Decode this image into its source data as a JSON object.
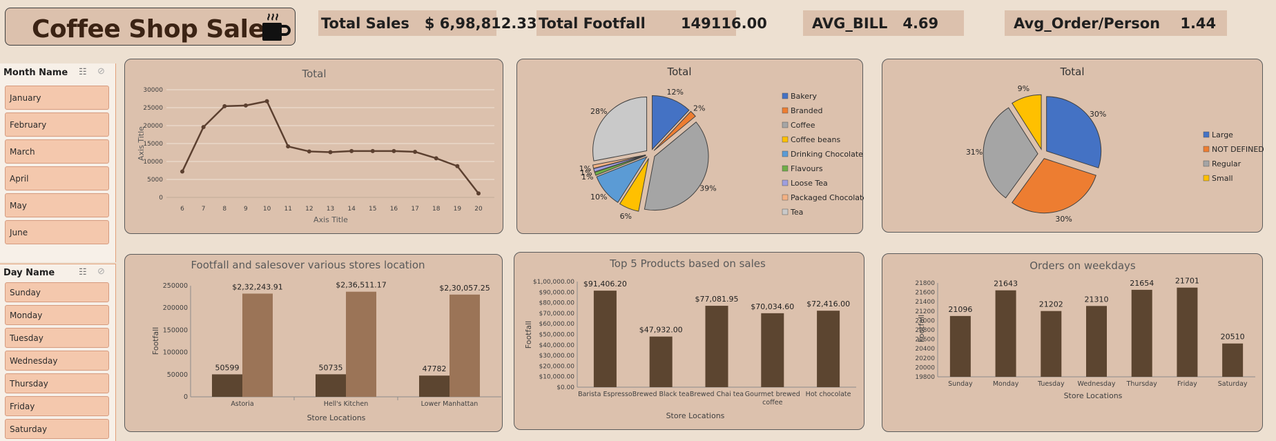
{
  "header": {
    "title": "Coffee Shop Sales"
  },
  "kpis": {
    "total_sales": "Total Sales   $ 6,98,812.33",
    "total_footfall": "Total Footfall       149116.00",
    "avg_bill": "AVG_BILL   4.69",
    "avg_order": "Avg_Order/Person    1.44"
  },
  "slicers": {
    "month": {
      "header": "Month Name",
      "items": [
        "January",
        "February",
        "March",
        "April",
        "May",
        "June"
      ]
    },
    "day": {
      "header": "Day Name",
      "items": [
        "Sunday",
        "Monday",
        "Tuesday",
        "Wednesday",
        "Thursday",
        "Friday",
        "Saturday"
      ]
    }
  },
  "chart_data": [
    {
      "type": "line",
      "title": "Total",
      "xlabel": "Axis Title",
      "ylabel": "Axis Title",
      "x": [
        "6",
        "7",
        "8",
        "9",
        "10",
        "11",
        "12",
        "13",
        "14",
        "15",
        "16",
        "17",
        "18",
        "19",
        "20"
      ],
      "values": [
        7200,
        19600,
        25400,
        25600,
        26800,
        14200,
        12800,
        12600,
        12900,
        12900,
        12900,
        12700,
        10900,
        8700,
        1100
      ],
      "yticks": [
        "0",
        "5000",
        "10000",
        "15000",
        "20000",
        "25000",
        "30000"
      ],
      "ylim": [
        0,
        30000
      ],
      "grid": true,
      "color": "#5c4030"
    },
    {
      "type": "pie",
      "title": "Total",
      "slices": [
        {
          "name": "Bakery",
          "value": 12,
          "label": "12%",
          "color": "#4472c4"
        },
        {
          "name": "Branded",
          "value": 2,
          "label": "2%",
          "color": "#ed7d31"
        },
        {
          "name": "Coffee",
          "value": 39,
          "label": "39%",
          "color": "#a5a5a5"
        },
        {
          "name": "Coffee beans",
          "value": 6,
          "label": "6%",
          "color": "#ffc000"
        },
        {
          "name": "Drinking Chocolate",
          "value": 10,
          "label": "10%",
          "color": "#5b9bd5"
        },
        {
          "name": "Flavours",
          "value": 1,
          "label": "1%",
          "color": "#70ad47"
        },
        {
          "name": "Loose Tea",
          "value": 1,
          "label": "1%",
          "color": "#9e9ede"
        },
        {
          "name": "Packaged Chocolate",
          "value": 1,
          "label": "1%",
          "color": "#f4b183"
        },
        {
          "name": "Tea",
          "value": 28,
          "label": "28%",
          "color": "#c9c9c9"
        }
      ],
      "legend": "right"
    },
    {
      "type": "pie",
      "title": "Total",
      "slices": [
        {
          "name": "Large",
          "value": 30,
          "label": "30%",
          "color": "#4472c4"
        },
        {
          "name": "NOT DEFINED",
          "value": 30,
          "label": "30%",
          "color": "#ed7d31"
        },
        {
          "name": "Regular",
          "value": 31,
          "label": "31%",
          "color": "#a5a5a5"
        },
        {
          "name": "Small",
          "value": 9,
          "label": "9%",
          "color": "#ffc000"
        }
      ],
      "legend": "right"
    },
    {
      "type": "bar",
      "title": "Footfall and salesover various stores location",
      "xlabel": "Store Locations",
      "ylabel": "Footfall",
      "categories": [
        "Astoria",
        "Hell's Kitchen",
        "Lower Manhattan"
      ],
      "series": [
        {
          "values": [
            50599,
            50735,
            47782
          ],
          "labels": [
            "50599",
            "50735",
            "47782"
          ],
          "color": "#5c4530"
        },
        {
          "values": [
            232243.91,
            236511.17,
            230057.25
          ],
          "labels": [
            "$2,32,243.91",
            "$2,36,511.17",
            "$2,30,057.25"
          ],
          "color": "#9b7457"
        }
      ],
      "yticks": [
        "0",
        "50000",
        "100000",
        "150000",
        "200000",
        "250000"
      ],
      "ylim": [
        0,
        250000
      ]
    },
    {
      "type": "bar",
      "title": "Top 5 Products based on sales",
      "xlabel": "Store Locations",
      "ylabel": "Footfall",
      "categories": [
        "Barista Espresso",
        "Brewed Black tea",
        "Brewed Chai tea",
        "Gourmet brewed coffee",
        "Hot chocolate"
      ],
      "values": [
        91406.2,
        47932.0,
        77081.95,
        70034.6,
        72416.0
      ],
      "labels": [
        "$91,406.20",
        "$47,932.00",
        "$77,081.95",
        "$70,034.60",
        "$72,416.00"
      ],
      "yticks": [
        "$0.00",
        "$10,000.00",
        "$20,000.00",
        "$30,000.00",
        "$40,000.00",
        "$50,000.00",
        "$60,000.00",
        "$70,000.00",
        "$80,000.00",
        "$90,000.00",
        "$1,00,000.00"
      ],
      "ylim": [
        0,
        100000
      ],
      "color": "#5c4530"
    },
    {
      "type": "bar",
      "title": "Orders on weekdays",
      "xlabel": "Store Locations",
      "ylabel": "Footfall",
      "categories": [
        "Sunday",
        "Monday",
        "Tuesday",
        "Wednesday",
        "Thursday",
        "Friday",
        "Saturday"
      ],
      "values": [
        21096,
        21643,
        21202,
        21310,
        21654,
        21701,
        20510
      ],
      "yticks": [
        "19800",
        "20000",
        "20200",
        "20400",
        "20600",
        "20800",
        "21000",
        "21200",
        "21400",
        "21600",
        "21800"
      ],
      "ylim": [
        19800,
        21800
      ],
      "color": "#5c4530"
    }
  ]
}
